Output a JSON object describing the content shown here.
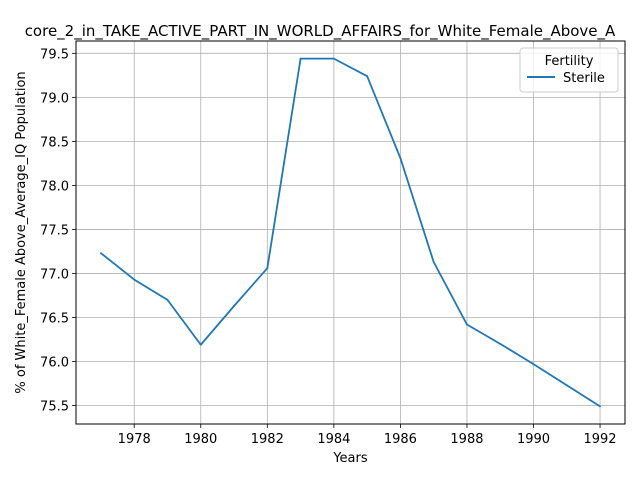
{
  "chart_data": {
    "type": "line",
    "title": "core_2_in_TAKE_ACTIVE_PART_IN_WORLD_AFFAIRS_for_White_Female_Above_A",
    "xlabel": "Years",
    "ylabel": "% of White_Female Above_Average_IQ Population",
    "xlim": [
      1976.25,
      1992.75
    ],
    "ylim": [
      75.29,
      79.64
    ],
    "xticks": [
      1978,
      1980,
      1982,
      1984,
      1986,
      1988,
      1990,
      1992
    ],
    "yticks": [
      75.5,
      76.0,
      76.5,
      77.0,
      77.5,
      78.0,
      78.5,
      79.0,
      79.5
    ],
    "grid": true,
    "legend": {
      "title": "Fertility",
      "placement": "top-right"
    },
    "series": [
      {
        "name": "Sterile",
        "color": "#1f77b4",
        "x": [
          1977,
          1978,
          1979,
          1980,
          1981,
          1982,
          1983,
          1984,
          1985,
          1986,
          1987,
          1988,
          1989,
          1990,
          1991,
          1992
        ],
        "y": [
          77.23,
          76.93,
          76.7,
          76.19,
          76.63,
          77.06,
          79.44,
          79.44,
          79.24,
          78.31,
          77.13,
          76.42,
          76.2,
          75.97,
          75.73,
          75.49
        ]
      }
    ]
  }
}
